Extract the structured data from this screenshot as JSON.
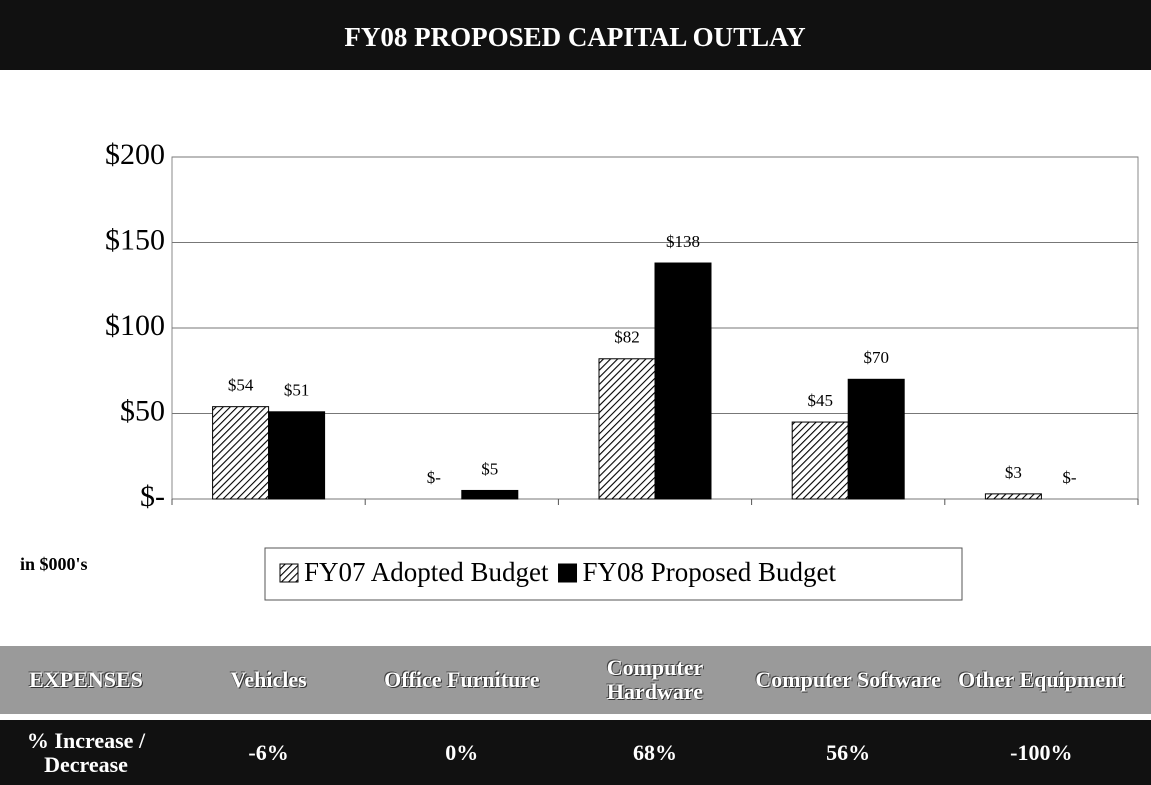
{
  "chart_data": {
    "type": "bar",
    "title": "FY08 PROPOSED CAPITAL OUTLAY",
    "unit_label": "in $000's",
    "categories": [
      "Vehicles",
      "Office Furniture",
      "Computer Hardware",
      "Computer Software",
      "Other Equipment"
    ],
    "series": [
      {
        "name": "FY07 Adopted Budget",
        "color": "#000000",
        "hatch": true,
        "values": [
          54,
          0,
          82,
          45,
          3
        ],
        "value_labels": [
          "$54",
          "$-",
          "$82",
          "$45",
          "$3"
        ]
      },
      {
        "name": "FY08 Proposed Budget",
        "color": "#000000",
        "hatch": false,
        "values": [
          51,
          5,
          138,
          70,
          0
        ],
        "value_labels": [
          "$51",
          "$5",
          "$138",
          "$70",
          "$-"
        ]
      }
    ],
    "ylim": [
      0,
      200
    ],
    "yticks": [
      {
        "value": 0,
        "label": "$-"
      },
      {
        "value": 50,
        "label": "$50"
      },
      {
        "value": 100,
        "label": "$100"
      },
      {
        "value": 150,
        "label": "$150"
      },
      {
        "value": 200,
        "label": "$200"
      }
    ],
    "grid": true
  },
  "table": {
    "header_label": "EXPENSES",
    "row_label": "% Increase / Decrease",
    "values": [
      "-6%",
      "0%",
      "68%",
      "56%",
      "-100%"
    ]
  }
}
